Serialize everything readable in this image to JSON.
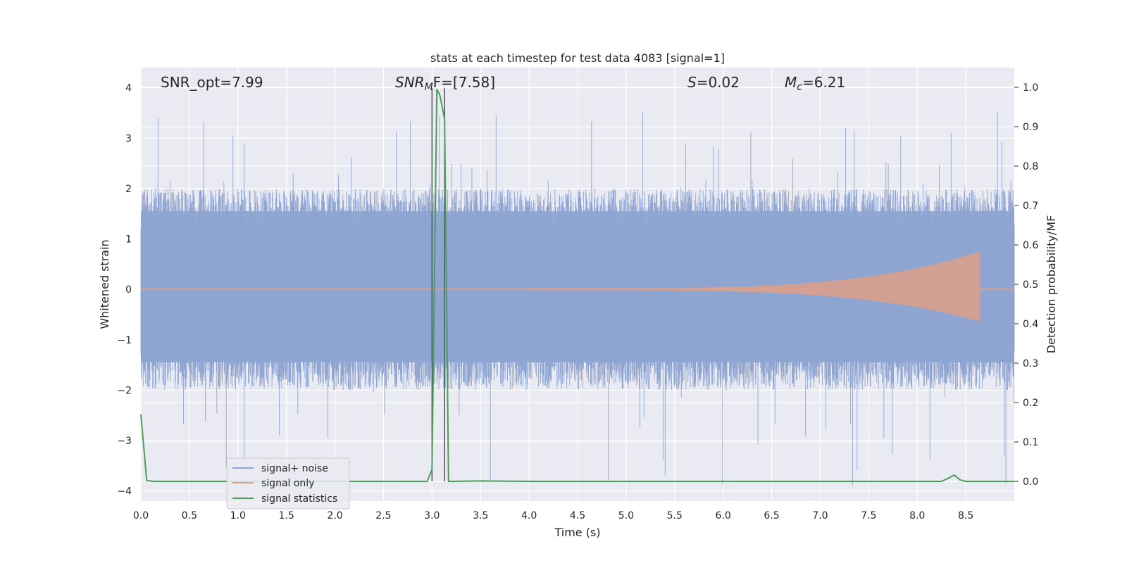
{
  "chart_data": {
    "type": "line",
    "title": "stats at each timestep for test data 4083 [signal=1]",
    "xlabel": "Time (s)",
    "ylabel": "Whitened strain",
    "y2label": "Detection probability/MF",
    "xlim": [
      0.0,
      9.0
    ],
    "ylim": [
      -4.2,
      4.4
    ],
    "y2lim": [
      -0.05,
      1.05
    ],
    "xticks": [
      "0.0",
      "0.5",
      "1.0",
      "1.5",
      "2.0",
      "2.5",
      "3.0",
      "3.5",
      "4.0",
      "4.5",
      "5.0",
      "5.5",
      "6.0",
      "6.5",
      "7.0",
      "7.5",
      "8.0",
      "8.5"
    ],
    "yticks": [
      "−4",
      "−3",
      "−2",
      "−1",
      "0",
      "1",
      "2",
      "3",
      "4"
    ],
    "y2ticks": [
      "0.0",
      "0.1",
      "0.2",
      "0.3",
      "0.4",
      "0.5",
      "0.6",
      "0.7",
      "0.8",
      "0.9",
      "1.0"
    ],
    "grid": true,
    "legend": "lower-left",
    "annotations": {
      "snr_opt": "SNR_opt=7.99",
      "snr_mf_main": "SNR",
      "snr_mf_sub": "M",
      "snr_mf_rest": "F=[7.58]",
      "s_sym": "S",
      "s_val": "=0.02",
      "mc_sym": "M",
      "mc_sub": "c",
      "mc_val": "=6.21"
    },
    "vlines": [
      3.0,
      3.13
    ],
    "series": [
      {
        "name": "signal+ noise",
        "color": "#8fa5d1",
        "axis": "left",
        "noise_envelope": {
          "typical_upper": 2.0,
          "typical_lower": -2.0,
          "peak_upper": 3.55,
          "peak_lower": -3.9
        }
      },
      {
        "name": "signal only",
        "color": "#d9a08c",
        "axis": "left",
        "chirp": {
          "start": 4.0,
          "end": 8.65,
          "amplitude_start": 0.02,
          "amplitude_end": 0.75
        }
      },
      {
        "name": "signal statistics",
        "color": "#4a9e58",
        "axis": "right",
        "x": [
          0.0,
          0.06,
          0.13,
          0.5,
          1.0,
          2.0,
          2.95,
          3.0,
          3.05,
          3.08,
          3.13,
          3.17,
          3.22,
          3.5,
          4.0,
          5.0,
          6.0,
          7.0,
          8.0,
          8.25,
          8.32,
          8.38,
          8.44,
          8.5,
          9.0
        ],
        "values": [
          0.17,
          0.002,
          0.0,
          0.0,
          0.0,
          0.0,
          0.0,
          0.03,
          0.995,
          0.98,
          0.92,
          0.0,
          0.0,
          0.001,
          0.0,
          0.0,
          0.0,
          0.0,
          0.0,
          0.0,
          0.008,
          0.016,
          0.004,
          0.0,
          0.0
        ]
      }
    ]
  }
}
